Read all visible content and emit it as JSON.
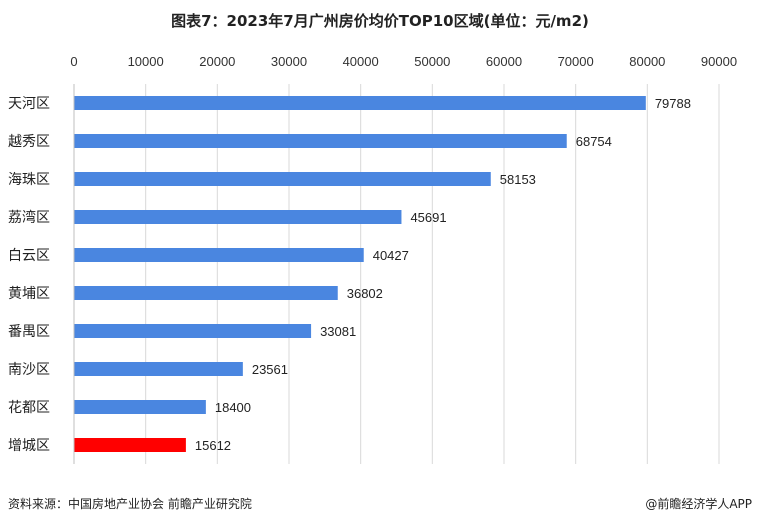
{
  "chart_data": {
    "type": "bar",
    "orientation": "horizontal",
    "title": "图表7：2023年7月广州房价均价TOP10区域(单位：元/m2)",
    "categories": [
      "天河区",
      "越秀区",
      "海珠区",
      "荔湾区",
      "白云区",
      "黄埔区",
      "番禺区",
      "南沙区",
      "花都区",
      "增城区"
    ],
    "values": [
      79788,
      68754,
      58153,
      45691,
      40427,
      36802,
      33081,
      23561,
      18400,
      15612
    ],
    "data_labels": [
      "79788",
      "68754",
      "58153",
      "45691",
      "40427",
      "36802",
      "33081",
      "23561",
      "18400",
      "15612"
    ],
    "xlim": [
      0,
      90000
    ],
    "xticks": [
      0,
      10000,
      20000,
      30000,
      40000,
      50000,
      60000,
      70000,
      80000,
      90000
    ],
    "xtick_labels": [
      "0",
      "10000",
      "20000",
      "30000",
      "40000",
      "50000",
      "60000",
      "70000",
      "80000",
      "90000"
    ],
    "x_axis_position": "top",
    "grid": "vertical",
    "bar_color": "#4a86e0",
    "highlight_color": "#ff0000",
    "highlight_index": 9,
    "grid_color": "#d9d9d9"
  },
  "footer": {
    "source": "资料来源：中国房地产业协会 前瞻产业研究院",
    "brand": "@前瞻经济学人APP"
  }
}
